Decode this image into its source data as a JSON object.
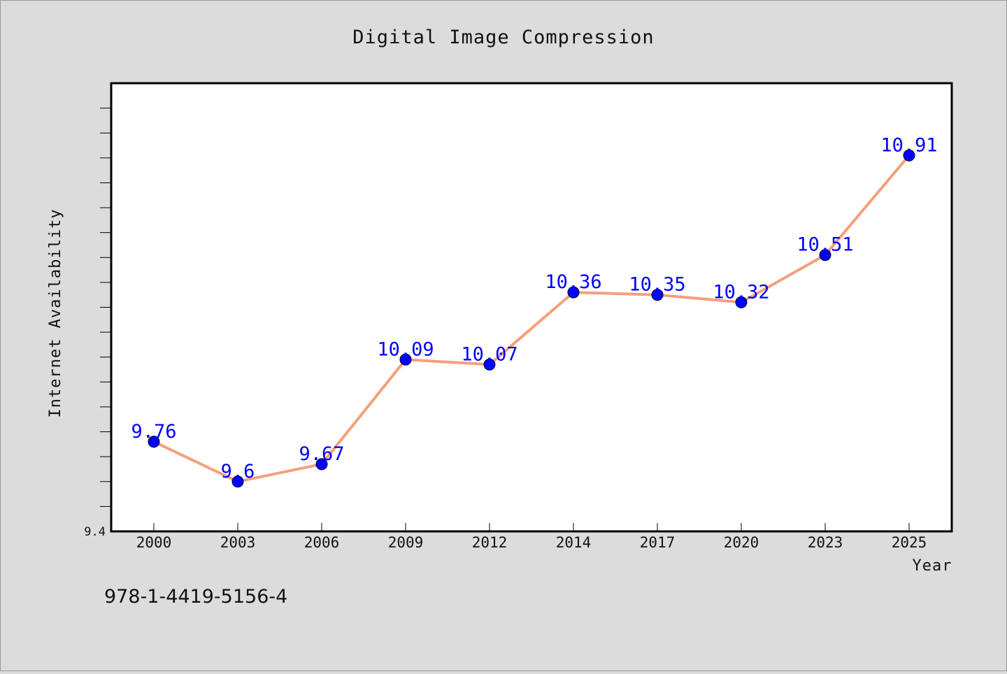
{
  "chart_data": {
    "type": "line",
    "title": "Digital Image Compression",
    "xlabel": "Year",
    "ylabel": "Internet Availability",
    "categories": [
      "2000",
      "2003",
      "2006",
      "2009",
      "2012",
      "2014",
      "2017",
      "2020",
      "2023",
      "2025"
    ],
    "series": [
      {
        "values": [
          9.76,
          9.6,
          9.67,
          10.09,
          10.07,
          10.36,
          10.35,
          10.32,
          10.51,
          10.91
        ]
      }
    ],
    "ylim": [
      9.4,
      11.2
    ],
    "yticks_labeled": [
      "9.4"
    ],
    "grid": false,
    "line_color": "#f4a07c",
    "marker_color": "#0000ff",
    "label_color": "#0000ff",
    "background_color": "#dcdcdc",
    "plot_background": "#ffffff"
  },
  "footer": {
    "isbn": "978-1-4419-5156-4"
  }
}
